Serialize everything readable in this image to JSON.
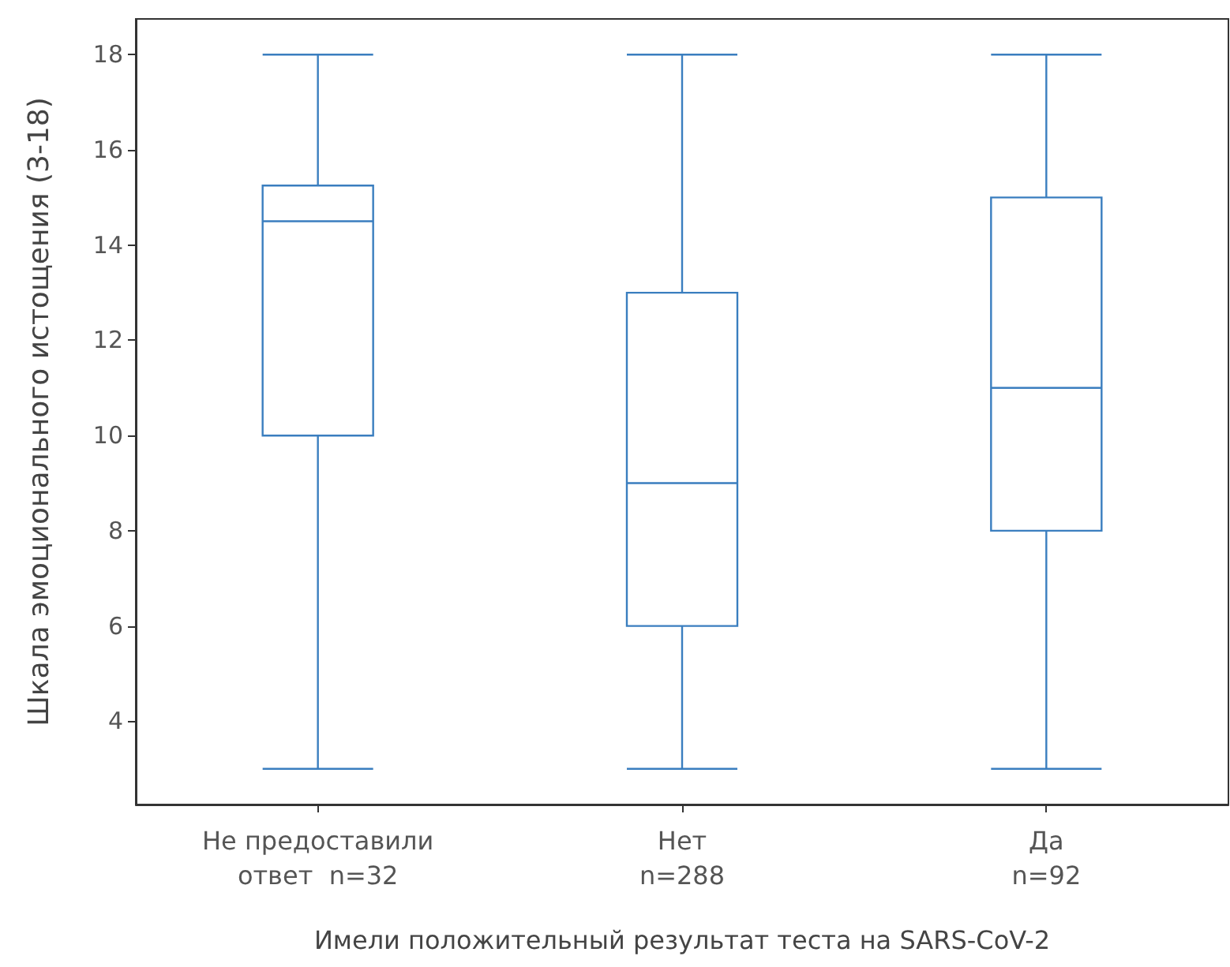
{
  "chart_data": {
    "type": "box",
    "xlabel": "Имели положительный результат теста на SARS-CoV-2",
    "ylabel": "Шкала эмоционального истощения (3-18)",
    "categories": [
      "Не предоставили\nответ  n=32",
      "Нет\nn=288",
      "Да\nn=92"
    ],
    "boxes": [
      {
        "low": 3,
        "q1": 10,
        "median": 14.5,
        "q3": 15.25,
        "high": 18
      },
      {
        "low": 3,
        "q1": 6,
        "median": 9,
        "q3": 13,
        "high": 18
      },
      {
        "low": 3,
        "q1": 8,
        "median": 11,
        "q3": 15,
        "high": 18
      }
    ],
    "color": "#3a7ebf",
    "ylim": [
      2.25,
      18.75
    ],
    "yticks": [
      4,
      6,
      8,
      10,
      12,
      14,
      16,
      18
    ],
    "grid": false
  }
}
